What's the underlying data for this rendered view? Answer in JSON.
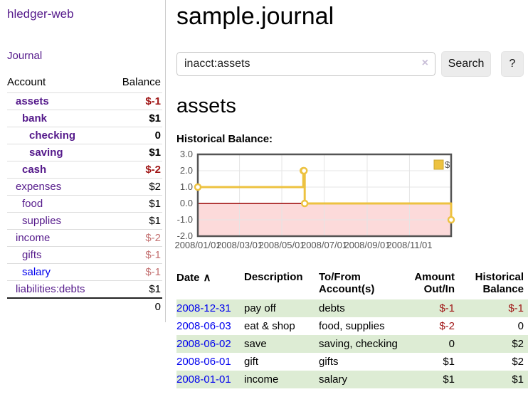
{
  "sidebar": {
    "app_title": "hledger-web",
    "journal_link": "Journal",
    "accounts": {
      "col_account": "Account",
      "col_balance": "Balance",
      "rows": [
        {
          "name": "assets",
          "balance": "$-1"
        },
        {
          "name": "bank",
          "balance": "$1"
        },
        {
          "name": "checking",
          "balance": "0"
        },
        {
          "name": "saving",
          "balance": "$1"
        },
        {
          "name": "cash",
          "balance": "$-2"
        },
        {
          "name": "expenses",
          "balance": "$2"
        },
        {
          "name": "food",
          "balance": "$1"
        },
        {
          "name": "supplies",
          "balance": "$1"
        },
        {
          "name": "income",
          "balance": "$-2"
        },
        {
          "name": "gifts",
          "balance": "$-1"
        },
        {
          "name": "salary",
          "balance": "$-1"
        },
        {
          "name": "liabilities:debts",
          "balance": "$1"
        }
      ],
      "total": "0"
    }
  },
  "header": {
    "title": "sample.journal"
  },
  "search": {
    "value": "inacct:assets",
    "clear_icon": "×",
    "button_label": "Search",
    "help_label": "?"
  },
  "account_page": {
    "heading": "assets",
    "chart_title": "Historical Balance:"
  },
  "chart_data": {
    "type": "line",
    "step": true,
    "title": "Historical Balance:",
    "legend": [
      {
        "label": "$",
        "color": "#edc240"
      }
    ],
    "xlim": [
      "2008-01-01",
      "2008-12-31"
    ],
    "ylim": [
      -2,
      3
    ],
    "y_ticks": [
      3,
      2,
      1,
      0,
      -1,
      -2
    ],
    "x_tick_dates": [
      "2008-01-01",
      "2008-03-01",
      "2008-05-01",
      "2008-07-01",
      "2008-09-01",
      "2008-11-01"
    ],
    "x_tick_labels": [
      "2008/01/01",
      "2008/03/01",
      "2008/05/01",
      "2008/07/01",
      "2008/09/01",
      "2008/11/01"
    ],
    "series": [
      {
        "name": "$",
        "points": [
          [
            "2008-01-01",
            1
          ],
          [
            "2008-06-01",
            2
          ],
          [
            "2008-06-02",
            2
          ],
          [
            "2008-06-03",
            0
          ],
          [
            "2008-12-31",
            -1
          ]
        ]
      }
    ],
    "colors": {
      "line": "#edc240",
      "negative_fill": "#fcdada",
      "zero_line": "#990000",
      "frame": "#545454",
      "grid": "#e5e5e5",
      "legend_box_border": "#c9a52e"
    }
  },
  "register": {
    "headers": {
      "date": "Date",
      "sort_icon": "∧",
      "description": "Description",
      "accounts": "To/From Account(s)",
      "amount": "Amount Out/In",
      "balance": "Historical Balance"
    },
    "rows": [
      {
        "date": "2008-12-31",
        "description": "pay off",
        "accounts": "debts",
        "amount": "$-1",
        "balance": "$-1"
      },
      {
        "date": "2008-06-03",
        "description": "eat & shop",
        "accounts": "food, supplies",
        "amount": "$-2",
        "balance": "0"
      },
      {
        "date": "2008-06-02",
        "description": "save",
        "accounts": "saving, checking",
        "amount": "0",
        "balance": "$2"
      },
      {
        "date": "2008-06-01",
        "description": "gift",
        "accounts": "gifts",
        "amount": "$1",
        "balance": "$2"
      },
      {
        "date": "2008-01-01",
        "description": "income",
        "accounts": "salary",
        "amount": "$1",
        "balance": "$1"
      }
    ]
  }
}
